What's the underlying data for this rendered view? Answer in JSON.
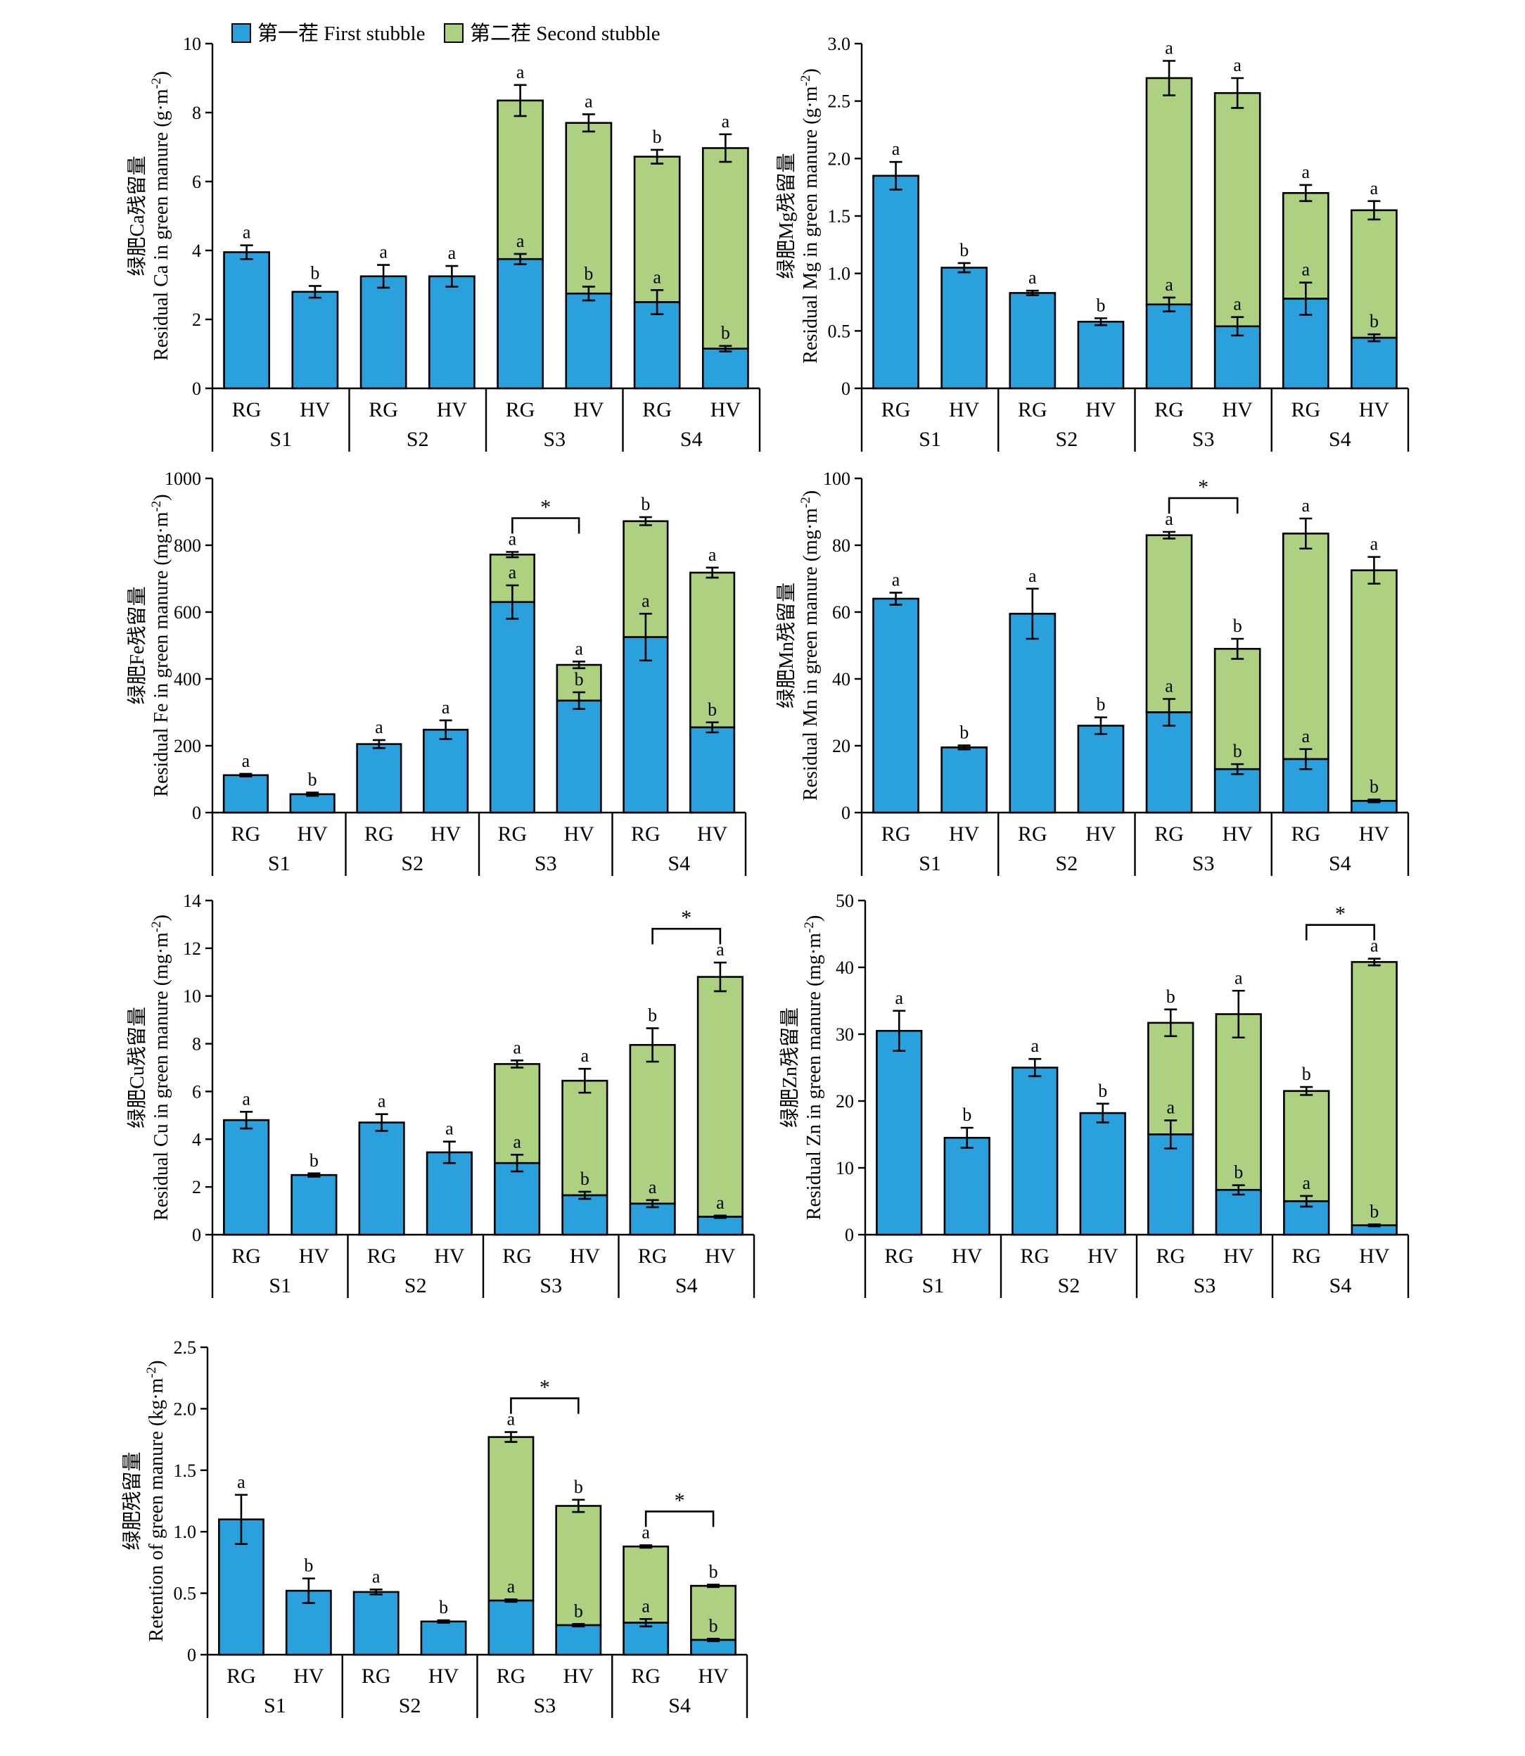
{
  "legend": {
    "first": "第一茬 First stubble",
    "second": "第二茬 Second stubble"
  },
  "colors": {
    "first": "#2aa0dc",
    "second": "#aed081"
  },
  "chart_data": [
    {
      "id": "ca",
      "type": "bar",
      "stacked": true,
      "ylabel_cn": "绿肥Ca残留量",
      "ylabel_en": "Residual Ca in green manure (g·m",
      "ylabel_sup": "-2",
      "ylabel_close": ")",
      "ylim": [
        0,
        10
      ],
      "yticks": [
        "0",
        "2",
        "4",
        "6",
        "8",
        "10"
      ],
      "tick_values": [
        0,
        2,
        4,
        6,
        8,
        10
      ],
      "groups": [
        "S1",
        "S2",
        "S3",
        "S4"
      ],
      "categories": [
        "RG",
        "HV",
        "RG",
        "HV",
        "RG",
        "HV",
        "RG",
        "HV"
      ],
      "first": [
        3.95,
        2.8,
        3.25,
        3.25,
        3.75,
        2.75,
        2.5,
        1.15
      ],
      "first_err": [
        0.2,
        0.17,
        0.33,
        0.3,
        0.15,
        0.2,
        0.35,
        0.08
      ],
      "total": [
        null,
        null,
        null,
        null,
        8.35,
        7.7,
        6.72,
        6.97
      ],
      "total_err": [
        null,
        null,
        null,
        null,
        0.45,
        0.25,
        0.2,
        0.4
      ],
      "first_letters": [
        "a",
        "b",
        "a",
        "a",
        "a",
        "b",
        "a",
        "b"
      ],
      "total_letters": [
        "",
        "",
        "",
        "",
        "a",
        "a",
        "b",
        "a"
      ],
      "brackets": []
    },
    {
      "id": "mg",
      "type": "bar",
      "stacked": true,
      "ylabel_cn": "绿肥Mg残留量",
      "ylabel_en": "Residual Mg in green manure (g·m",
      "ylabel_sup": "-2",
      "ylabel_close": ")",
      "ylim": [
        0,
        3
      ],
      "yticks": [
        "0",
        "0.5",
        "1.0",
        "1.5",
        "2.0",
        "2.5",
        "3.0"
      ],
      "tick_values": [
        0,
        0.5,
        1.0,
        1.5,
        2.0,
        2.5,
        3.0
      ],
      "groups": [
        "S1",
        "S2",
        "S3",
        "S4"
      ],
      "categories": [
        "RG",
        "HV",
        "RG",
        "HV",
        "RG",
        "HV",
        "RG",
        "HV"
      ],
      "first": [
        1.85,
        1.05,
        0.83,
        0.58,
        0.73,
        0.54,
        0.78,
        0.44
      ],
      "first_err": [
        0.12,
        0.04,
        0.02,
        0.03,
        0.06,
        0.08,
        0.14,
        0.03
      ],
      "total": [
        null,
        null,
        null,
        null,
        2.7,
        2.57,
        1.7,
        1.55
      ],
      "total_err": [
        null,
        null,
        null,
        null,
        0.15,
        0.13,
        0.07,
        0.08
      ],
      "first_letters": [
        "a",
        "b",
        "a",
        "b",
        "a",
        "a",
        "a",
        "b"
      ],
      "total_letters": [
        "",
        "",
        "",
        "",
        "a",
        "a",
        "a",
        "a"
      ],
      "brackets": []
    },
    {
      "id": "fe",
      "type": "bar",
      "stacked": true,
      "ylabel_cn": "绿肥Fe残留量",
      "ylabel_en": "Residual Fe in green manure (mg·m",
      "ylabel_sup": "-2",
      "ylabel_close": ")",
      "ylim": [
        0,
        1000
      ],
      "yticks": [
        "0",
        "200",
        "400",
        "600",
        "800",
        "1000"
      ],
      "tick_values": [
        0,
        200,
        400,
        600,
        800,
        1000
      ],
      "groups": [
        "S1",
        "S2",
        "S3",
        "S4"
      ],
      "categories": [
        "RG",
        "HV",
        "RG",
        "HV",
        "RG",
        "HV",
        "RG",
        "HV"
      ],
      "first": [
        112,
        55,
        205,
        248,
        630,
        335,
        525,
        255
      ],
      "first_err": [
        4,
        5,
        12,
        28,
        50,
        25,
        70,
        15
      ],
      "total": [
        null,
        null,
        null,
        null,
        772,
        442,
        872,
        718
      ],
      "total_err": [
        null,
        null,
        null,
        null,
        8,
        10,
        12,
        15
      ],
      "first_letters": [
        "a",
        "b",
        "a",
        "a",
        "a",
        "b",
        "a",
        "b"
      ],
      "total_letters": [
        "",
        "",
        "",
        "",
        "a",
        "a",
        "b",
        "a"
      ],
      "brackets": [
        {
          "from": 4,
          "to": 5,
          "label": "*"
        }
      ]
    },
    {
      "id": "mn",
      "type": "bar",
      "stacked": true,
      "ylabel_cn": "绿肥Mn残留量",
      "ylabel_en": "Residual Mn in green manure (mg·m",
      "ylabel_sup": "-2",
      "ylabel_close": ")",
      "ylim": [
        0,
        100
      ],
      "yticks": [
        "0",
        "20",
        "40",
        "60",
        "80",
        "100"
      ],
      "tick_values": [
        0,
        20,
        40,
        60,
        80,
        100
      ],
      "groups": [
        "S1",
        "S2",
        "S3",
        "S4"
      ],
      "categories": [
        "RG",
        "HV",
        "RG",
        "HV",
        "RG",
        "HV",
        "RG",
        "HV"
      ],
      "first": [
        64,
        19.5,
        59.5,
        26,
        30,
        13,
        16,
        3.5
      ],
      "first_err": [
        1.8,
        0.6,
        7.5,
        2.5,
        4,
        1.5,
        3,
        0.4
      ],
      "total": [
        null,
        null,
        null,
        null,
        83,
        49,
        83.5,
        72.5
      ],
      "total_err": [
        null,
        null,
        null,
        null,
        1,
        3,
        4.5,
        4
      ],
      "first_letters": [
        "a",
        "b",
        "a",
        "b",
        "a",
        "b",
        "a",
        "b"
      ],
      "total_letters": [
        "",
        "",
        "",
        "",
        "a",
        "b",
        "a",
        "a"
      ],
      "brackets": [
        {
          "from": 4,
          "to": 5,
          "label": "*"
        }
      ]
    },
    {
      "id": "cu",
      "type": "bar",
      "stacked": true,
      "ylabel_cn": "绿肥Cu残留量",
      "ylabel_en": "Residual Cu in green manure (mg·m",
      "ylabel_sup": "-2",
      "ylabel_close": ")",
      "ylim": [
        0,
        14
      ],
      "yticks": [
        "0",
        "2",
        "4",
        "6",
        "8",
        "10",
        "12",
        "14"
      ],
      "tick_values": [
        0,
        2,
        4,
        6,
        8,
        10,
        12,
        14
      ],
      "groups": [
        "S1",
        "S2",
        "S3",
        "S4"
      ],
      "categories": [
        "RG",
        "HV",
        "RG",
        "HV",
        "RG",
        "HV",
        "RG",
        "HV"
      ],
      "first": [
        4.8,
        2.5,
        4.7,
        3.45,
        3.0,
        1.65,
        1.3,
        0.75
      ],
      "first_err": [
        0.35,
        0.07,
        0.35,
        0.45,
        0.35,
        0.15,
        0.15,
        0.05
      ],
      "total": [
        null,
        null,
        null,
        null,
        7.15,
        6.45,
        7.95,
        10.8
      ],
      "total_err": [
        null,
        null,
        null,
        null,
        0.15,
        0.5,
        0.7,
        0.6
      ],
      "first_letters": [
        "a",
        "b",
        "a",
        "a",
        "a",
        "b",
        "a",
        "a"
      ],
      "total_letters": [
        "",
        "",
        "",
        "",
        "a",
        "a",
        "b",
        "a"
      ],
      "brackets": [
        {
          "from": 6,
          "to": 7,
          "label": "*"
        }
      ]
    },
    {
      "id": "zn",
      "type": "bar",
      "stacked": true,
      "ylabel_cn": "绿肥Zn残留量",
      "ylabel_en": "Residual Zn in green manure (mg·m",
      "ylabel_sup": "-2",
      "ylabel_close": ")",
      "ylim": [
        0,
        50
      ],
      "yticks": [
        "0",
        "10",
        "20",
        "30",
        "40",
        "50"
      ],
      "tick_values": [
        0,
        10,
        20,
        30,
        40,
        50
      ],
      "groups": [
        "S1",
        "S2",
        "S3",
        "S4"
      ],
      "categories": [
        "RG",
        "HV",
        "RG",
        "HV",
        "RG",
        "HV",
        "RG",
        "HV"
      ],
      "first": [
        30.5,
        14.5,
        25,
        18.2,
        15,
        6.7,
        5,
        1.4
      ],
      "first_err": [
        3,
        1.5,
        1.3,
        1.4,
        2.1,
        0.7,
        0.8,
        0.15
      ],
      "total": [
        null,
        null,
        null,
        null,
        31.7,
        33,
        21.5,
        40.8
      ],
      "total_err": [
        null,
        null,
        null,
        null,
        2,
        3.5,
        0.6,
        0.5
      ],
      "first_letters": [
        "a",
        "b",
        "a",
        "b",
        "a",
        "b",
        "a",
        "b"
      ],
      "total_letters": [
        "",
        "",
        "",
        "",
        "b",
        "a",
        "b",
        "a"
      ],
      "brackets": [
        {
          "from": 6,
          "to": 7,
          "label": "*"
        }
      ]
    },
    {
      "id": "ret",
      "type": "bar",
      "stacked": true,
      "ylabel_cn": "绿肥残留量",
      "ylabel_en": "Retention of green manure (kg·m",
      "ylabel_sup": "-2",
      "ylabel_close": ")",
      "ylim": [
        0,
        2.5
      ],
      "yticks": [
        "0",
        "0.5",
        "1.0",
        "1.5",
        "2.0",
        "2.5"
      ],
      "tick_values": [
        0,
        0.5,
        1.0,
        1.5,
        2.0,
        2.5
      ],
      "groups": [
        "S1",
        "S2",
        "S3",
        "S4"
      ],
      "categories": [
        "RG",
        "HV",
        "RG",
        "HV",
        "RG",
        "HV",
        "RG",
        "HV"
      ],
      "first": [
        1.1,
        0.52,
        0.51,
        0.27,
        0.44,
        0.24,
        0.26,
        0.12
      ],
      "first_err": [
        0.2,
        0.1,
        0.02,
        0.01,
        0.01,
        0.01,
        0.03,
        0.01
      ],
      "total": [
        null,
        null,
        null,
        null,
        1.77,
        1.21,
        0.88,
        0.56
      ],
      "total_err": [
        null,
        null,
        null,
        null,
        0.04,
        0.05,
        0.01,
        0.01
      ],
      "first_letters": [
        "a",
        "b",
        "a",
        "b",
        "a",
        "b",
        "a",
        "b"
      ],
      "total_letters": [
        "",
        "",
        "",
        "",
        "a",
        "b",
        "a",
        "b"
      ],
      "brackets": [
        {
          "from": 4,
          "to": 5,
          "label": "*"
        },
        {
          "from": 6,
          "to": 7,
          "label": "*"
        }
      ]
    }
  ]
}
